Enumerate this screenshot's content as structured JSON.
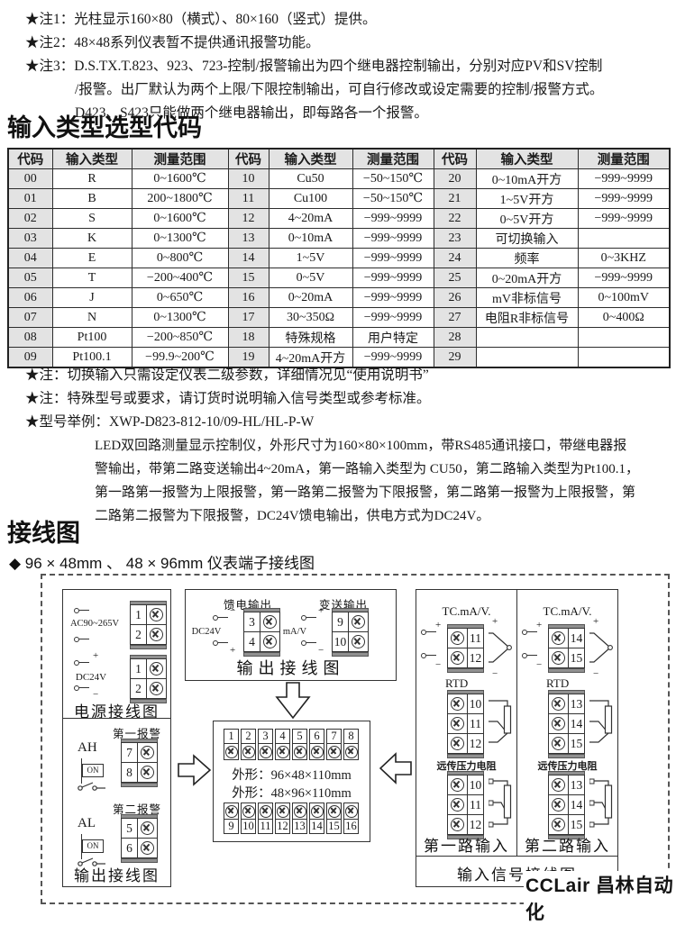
{
  "notes_top": [
    {
      "lines": [
        "★注1：光柱显示160×80（横式）、80×160（竖式）提供。"
      ]
    },
    {
      "lines": [
        "★注2：48×48系列仪表暂不提供通讯报警功能。"
      ]
    },
    {
      "lines": [
        "★注3：D.S.TX.T.823、923、723-控制/报警输出为四个继电器控制输出，分别对应PV和SV控制",
        "/报警。出厂默认为两个上限/下限控制输出，可自行修改或设定需要的控制/报警方式。",
        "D423、S423只能做两个继电器输出，即每路各一个报警。"
      ]
    }
  ],
  "section1": {
    "title": "输入类型选型代码"
  },
  "table": {
    "headers": [
      "代码",
      "输入类型",
      "测量范围"
    ],
    "groups": [
      {
        "rows": [
          [
            "00",
            "R",
            "0~1600℃"
          ],
          [
            "01",
            "B",
            "200~1800℃"
          ],
          [
            "02",
            "S",
            "0~1600℃"
          ],
          [
            "03",
            "K",
            "0~1300℃"
          ],
          [
            "04",
            "E",
            "0~800℃"
          ],
          [
            "05",
            "T",
            "−200~400℃"
          ],
          [
            "06",
            "J",
            "0~650℃"
          ],
          [
            "07",
            "N",
            "0~1300℃"
          ],
          [
            "08",
            "Pt100",
            "−200~850℃"
          ],
          [
            "09",
            "Pt100.1",
            "−99.9~200℃"
          ]
        ]
      },
      {
        "rows": [
          [
            "10",
            "Cu50",
            "−50~150℃"
          ],
          [
            "11",
            "Cu100",
            "−50~150℃"
          ],
          [
            "12",
            "4~20mA",
            "−999~9999"
          ],
          [
            "13",
            "0~10mA",
            "−999~9999"
          ],
          [
            "14",
            "1~5V",
            "−999~9999"
          ],
          [
            "15",
            "0~5V",
            "−999~9999"
          ],
          [
            "16",
            "0~20mA",
            "−999~9999"
          ],
          [
            "17",
            "30~350Ω",
            "−999~9999"
          ],
          [
            "18",
            "特殊规格",
            "用户特定"
          ],
          [
            "19",
            "4~20mA开方",
            "−999~9999"
          ]
        ]
      },
      {
        "rows": [
          [
            "20",
            "0~10mA开方",
            "−999~9999"
          ],
          [
            "21",
            "1~5V开方",
            "−999~9999"
          ],
          [
            "22",
            "0~5V开方",
            "−999~9999"
          ],
          [
            "23",
            "可切换输入",
            ""
          ],
          [
            "24",
            "频率",
            "0~3KHZ"
          ],
          [
            "25",
            "0~20mA开方",
            "−999~9999"
          ],
          [
            "26",
            "mV非标信号",
            "0~100mV"
          ],
          [
            "27",
            "电阻R非标信号",
            "0~400Ω"
          ],
          [
            "28",
            "",
            ""
          ],
          [
            "29",
            "",
            ""
          ]
        ]
      }
    ]
  },
  "notes_mid": [
    {
      "lines": [
        "★注：切换输入只需设定仪表二级参数，详细情况见“使用说明书”"
      ]
    },
    {
      "lines": [
        "★注：特殊型号或要求，请订货时说明输入信号类型或参考标准。"
      ]
    },
    {
      "lines": [
        "★型号举例：XWP-D823-812-10/09-HL/HL-P-W"
      ]
    }
  ],
  "model_example_lines": [
    "LED双回路测量显示控制仪，外形尺寸为160×80×100mm，带RS485通讯接口，带继电器报",
    "警输出，带第二路变送输出4~20mA，第一路输入类型为 CU50，第二路输入类型为Pt100.1，",
    "第一路第一报警为上限报警，第一路第二报警为下限报警，第二路第一报警为上限报警，第",
    "二路第二报警为下限报警，DC24V馈电输出，供电方式为DC24V。"
  ],
  "section2": {
    "title": "接线图",
    "subtitle": "◆ 96 × 48mm 、 48 × 96mm 仪表端子接线图"
  },
  "diagram": {
    "signs": {
      "plus": "+",
      "minus": "−"
    },
    "power_box": {
      "ac_label": "AC90~265V",
      "ac_terminals": [
        "1",
        "2"
      ],
      "dc_label": "DC24V",
      "dc_terminals": [
        "1",
        "2"
      ],
      "caption": "电源接线图"
    },
    "alarm_box": {
      "alarm1_title": "第一报警",
      "alarm1_tag": "AH",
      "alarm1_terminals": [
        "7",
        "8"
      ],
      "alarm2_title": "第二报警",
      "alarm2_tag": "AL",
      "alarm2_terminals": [
        "5",
        "6"
      ],
      "on_label": "ON",
      "caption": "输出接线图"
    },
    "output_box": {
      "feed_title": "馈电输出",
      "feed_label": "DC24V",
      "feed_terminals": [
        "3",
        "4"
      ],
      "trans_title": "变送输出",
      "trans_label": "mA/V",
      "trans_terminals": [
        "9",
        "10"
      ],
      "caption": "输出接线图"
    },
    "center_box": {
      "top_terminals": [
        "1",
        "2",
        "3",
        "4",
        "5",
        "6",
        "7",
        "8"
      ],
      "bottom_terminals": [
        "9",
        "10",
        "11",
        "12",
        "13",
        "14",
        "15",
        "16"
      ],
      "dim_line1": "外形：96×48×110mm",
      "dim_line2": "外形：48×96×110mm"
    },
    "input_box": {
      "channels": [
        {
          "tc_title": "TC.mA/V.",
          "tc_terminals": [
            "11",
            "12"
          ],
          "rtd_title": "RTD",
          "rtd_terminals": [
            "10",
            "11",
            "12"
          ],
          "press_title": "远传压力电阻",
          "press_terminals": [
            "10",
            "11",
            "12"
          ],
          "caption": "第一路输入"
        },
        {
          "tc_title": "TC.mA/V.",
          "tc_terminals": [
            "14",
            "15"
          ],
          "rtd_title": "RTD",
          "rtd_terminals": [
            "13",
            "14",
            "15"
          ],
          "press_title": "远传压力电阻",
          "press_terminals": [
            "13",
            "14",
            "15"
          ],
          "caption": "第二路输入"
        }
      ],
      "caption": "输入信号接线图"
    }
  },
  "watermark": "CCLair 昌林自动化"
}
